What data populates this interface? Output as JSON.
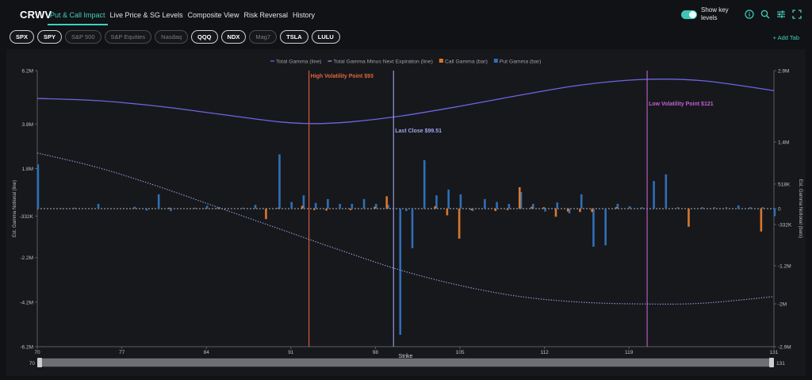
{
  "header": {
    "ticker": "CRWV",
    "tabs": [
      "Put & Call Impact",
      "Live Price & SG Levels",
      "Composite View",
      "Risk Reversal",
      "History"
    ],
    "active_tab": 0,
    "show_key_levels_label": "Show key levels",
    "add_tab_label": "+ Add Tab"
  },
  "symbols": [
    {
      "label": "SPX",
      "active": true
    },
    {
      "label": "SPY",
      "active": true
    },
    {
      "label": "S&P 500",
      "active": false
    },
    {
      "label": "S&P Equities",
      "active": false
    },
    {
      "label": "Nasdaq",
      "active": false
    },
    {
      "label": "QQQ",
      "active": true
    },
    {
      "label": "NDX",
      "active": true
    },
    {
      "label": "Mag7",
      "active": false
    },
    {
      "label": "TSLA",
      "active": true
    },
    {
      "label": "LULU",
      "active": true
    }
  ],
  "icons": {
    "info": "info-icon",
    "search": "search-icon",
    "settings": "sliders-icon",
    "expand": "expand-icon"
  },
  "colors": {
    "accent": "#3fd0bf",
    "total_gamma": "#6b66e0",
    "total_minus_next": "#8c98d8",
    "call_gamma": "#d9782d",
    "put_gamma": "#2f6fb6",
    "high_vol": "#e0643c",
    "last_close": "#9da6e8",
    "low_vol": "#c060d0"
  },
  "chart_data": {
    "type": "bar",
    "xlabel": "Strike",
    "ylabel_left": "Est. Gamma Notional (line)",
    "ylabel_right": "Est. Gamma Notional (bars)",
    "x_range": [
      70,
      131
    ],
    "x_ticks": [
      70,
      77,
      84,
      91,
      98,
      105,
      112,
      119,
      131
    ],
    "y_left_ticks": [
      "6.2M",
      "3.8M",
      "1.8M",
      "-332K",
      "-2.2M",
      "-4.2M",
      "-6.2M"
    ],
    "y_left_values": [
      6.2,
      3.8,
      1.8,
      -0.332,
      -2.2,
      -4.2,
      -6.2
    ],
    "y_left_range": [
      -6.2,
      6.2
    ],
    "y_right_ticks": [
      "2.9M",
      "1.4M",
      "518K",
      "0",
      "-332K",
      "-1.2M",
      "-2M",
      "-2.9M"
    ],
    "y_right_values": [
      2.9,
      1.4,
      0.518,
      0,
      -0.332,
      -1.2,
      -2,
      -2.9
    ],
    "y_right_range": [
      -2.9,
      2.9
    ],
    "legend": [
      {
        "name": "Total Gamma (line)",
        "key": "total_gamma",
        "style": "line"
      },
      {
        "name": "Total Gamma Minus Next Expiration (line)",
        "key": "total_minus_next",
        "style": "line"
      },
      {
        "name": "Call Gamma (bar)",
        "key": "call_gamma",
        "style": "bar"
      },
      {
        "name": "Put Gamma (bar)",
        "key": "put_gamma",
        "style": "bar"
      }
    ],
    "legend_position": "top-center",
    "key_levels": [
      {
        "label": "High Volatility Point $93",
        "x": 92.5,
        "color_key": "high_vol"
      },
      {
        "label": "Last Close $99.51",
        "x": 99.5,
        "color_key": "last_close"
      },
      {
        "label": "Low Volatility Point $121",
        "x": 120.5,
        "color_key": "low_vol"
      }
    ],
    "total_gamma_line": {
      "x": [
        70,
        75,
        80,
        85,
        90,
        93,
        96,
        100,
        105,
        110,
        115,
        120,
        125,
        131
      ],
      "y": [
        4.95,
        4.85,
        4.6,
        4.25,
        3.9,
        3.82,
        3.9,
        4.15,
        4.6,
        5.1,
        5.55,
        5.8,
        5.75,
        5.3
      ]
    },
    "total_minus_next_line": {
      "x": [
        70,
        75,
        80,
        85,
        90,
        95,
        100,
        105,
        110,
        115,
        120,
        125,
        131
      ],
      "y": [
        2.5,
        1.85,
        1.0,
        0.05,
        -0.9,
        -1.85,
        -2.75,
        -3.45,
        -3.95,
        -4.2,
        -4.28,
        -4.25,
        -3.95
      ]
    },
    "call_gamma": {
      "x": [
        72,
        78,
        81,
        84,
        85,
        89,
        90,
        92,
        93,
        94,
        96,
        98,
        99,
        103,
        104,
        105,
        106,
        108,
        109,
        110,
        111,
        112,
        113,
        114,
        115,
        116,
        118,
        124,
        130
      ],
      "y": [
        0.01,
        0.01,
        0.02,
        0.01,
        0.01,
        -0.22,
        0.02,
        0.06,
        -0.03,
        -0.04,
        -0.03,
        0.04,
        0.26,
        0.05,
        -0.14,
        -0.63,
        -0.03,
        -0.05,
        -0.03,
        0.45,
        0.04,
        0.03,
        -0.17,
        -0.06,
        -0.07,
        -0.07,
        0.03,
        -0.38,
        -0.48
      ]
    },
    "put_gamma": {
      "x": [
        70,
        73,
        75,
        78,
        79,
        80,
        81,
        83,
        84,
        85,
        87,
        88,
        90,
        91,
        92,
        93,
        94,
        95,
        96,
        97,
        98,
        99,
        100,
        100.5,
        101,
        102,
        103,
        104,
        105,
        106,
        107,
        108,
        109,
        110,
        111,
        112,
        113,
        114,
        115,
        116,
        117,
        118,
        119,
        120,
        121,
        122,
        123,
        125,
        126,
        127,
        128,
        129,
        130,
        131
      ],
      "y": [
        0.93,
        0.02,
        0.1,
        0.04,
        -0.04,
        0.3,
        -0.05,
        0.02,
        0.06,
        0.03,
        0.02,
        0.08,
        1.14,
        0.14,
        0.28,
        0.12,
        0.2,
        0.1,
        0.1,
        0.2,
        0.1,
        0.08,
        -2.65,
        -0.05,
        -0.83,
        1.02,
        0.28,
        0.4,
        0.3,
        -0.05,
        0.2,
        0.14,
        0.1,
        0.35,
        0.1,
        -0.06,
        0.13,
        -0.1,
        0.3,
        -0.8,
        -0.77,
        0.1,
        0.05,
        0.03,
        0.58,
        0.72,
        0.03,
        0.03,
        0.03,
        0.03,
        0.07,
        0.03,
        0.03,
        -0.16
      ]
    },
    "range_slider": {
      "min_label": "70",
      "max_label": "131"
    }
  }
}
